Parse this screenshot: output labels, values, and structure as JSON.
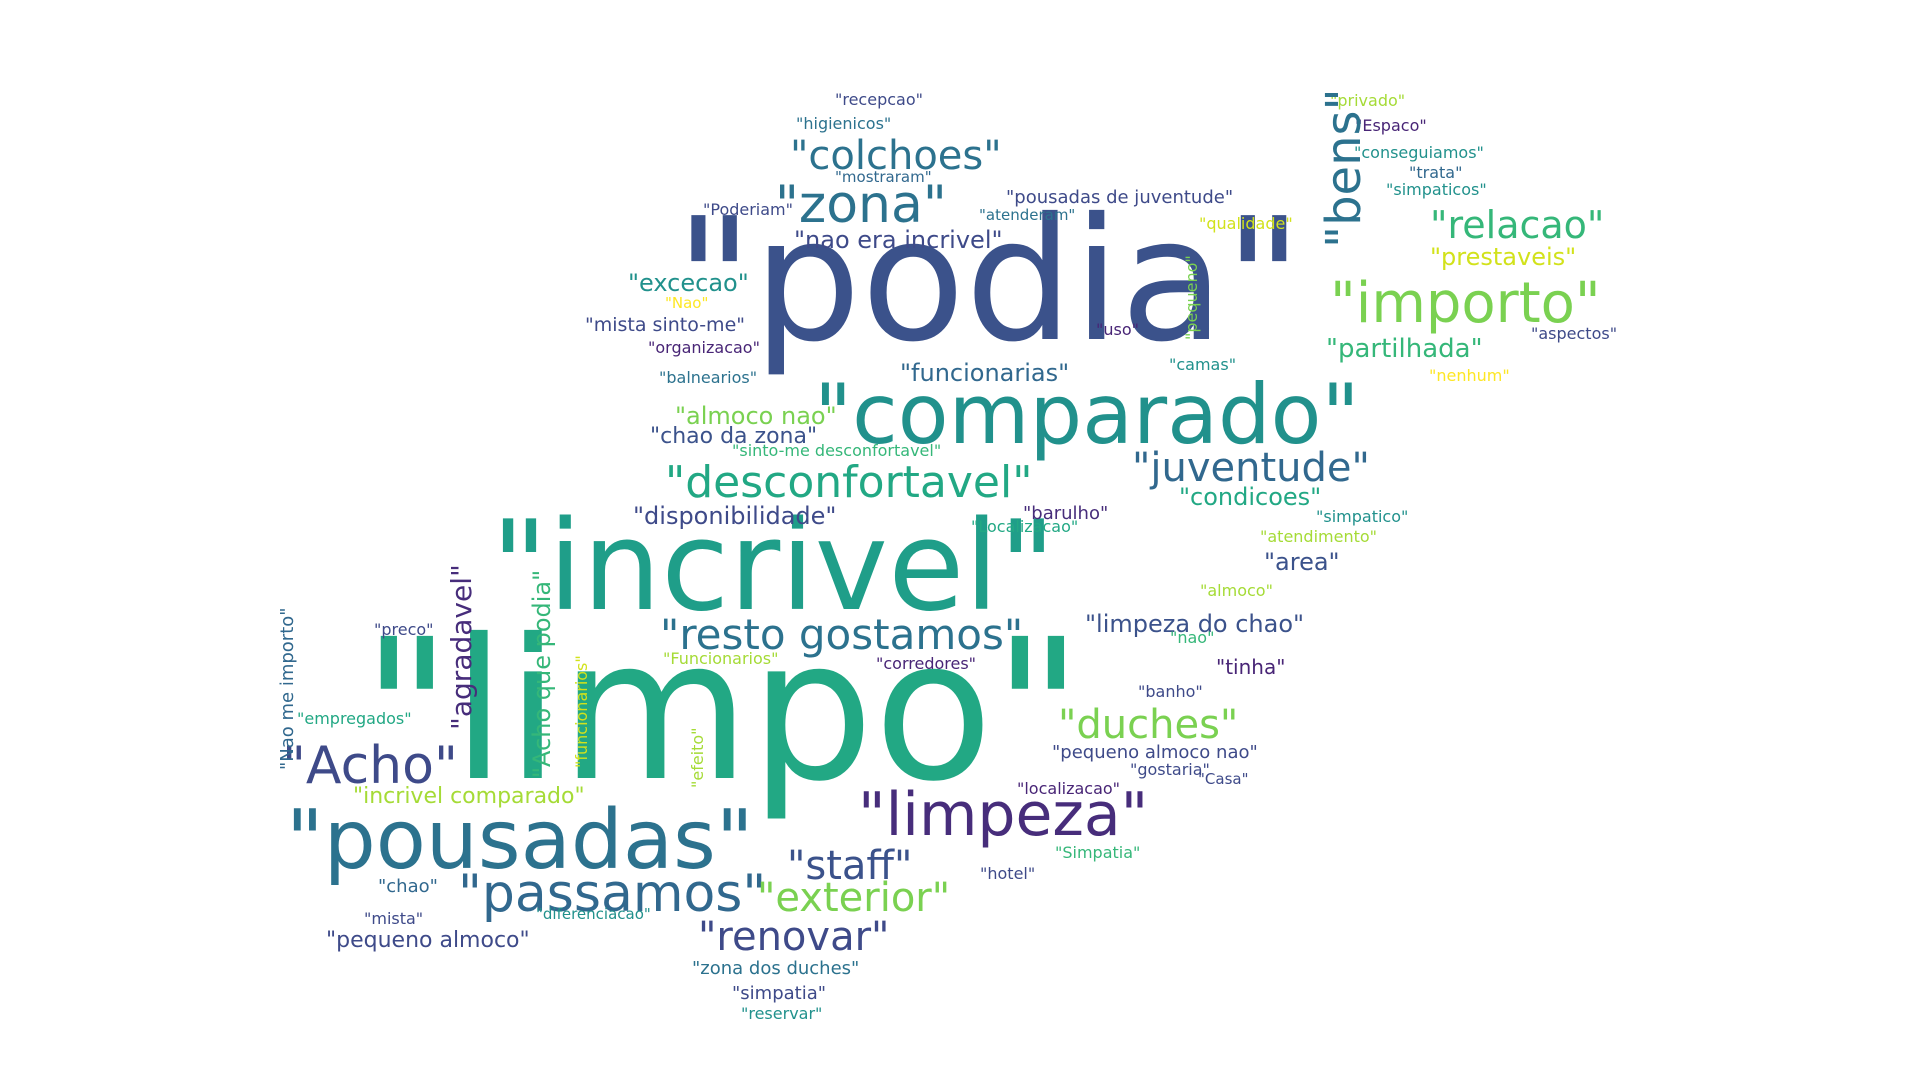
{
  "palette": {
    "navy": "#3b528b",
    "deep": "#3e4a89",
    "purple": "#472d7b",
    "indigo": "#443983",
    "dark": "#482576",
    "teal": "#2c728e",
    "slate": "#31688e",
    "cyan": "#21918c",
    "sea": "#1f9e89",
    "green": "#22a884",
    "mint": "#35b779",
    "lime": "#7ad151",
    "yellowgreen": "#a5db36",
    "gold": "#d2e21b",
    "yellow": "#fde725"
  },
  "words": [
    "\"podia\"",
    "\"limpo\"",
    "\"incrivel\"",
    "\"comparado\"",
    "\"pousadas\"",
    "\"importo\"",
    "\"limpeza\"",
    "\"zona\"",
    "\"desconfortavel\"",
    "\"passamos\"",
    "\"colchoes\"",
    "\"juventude\"",
    "\"resto gostamos\"",
    "\"Acho\"",
    "\"relacao\"",
    "\"duches\"",
    "\"renovar\"",
    "\"staff\"",
    "\"exterior\"",
    "\"bens\"",
    "\"agradavel\"",
    "\"excecao\"",
    "\"partilhada\"",
    "\"disponibilidade\"",
    "\"limpeza do chao\"",
    "\"funcionarias\"",
    "\"nao era incrivel\"",
    "\"prestaveis\"",
    "\"condicoes\"",
    "\"Acho que podia\"",
    "\"almoco nao\"",
    "\"chao da zona\"",
    "\"area\"",
    "\"pequeno almoco\"",
    "\"mista sinto-me\"",
    "\"incrivel comparado\"",
    "\"Nao me importo\"",
    "\"tinha\"",
    "\"barulho\"",
    "\"pousadas de juventude\"",
    "\"recepcao\"",
    "\"higienicos\"",
    "\"mostraram\"",
    "\"Poderiam\"",
    "\"atenderam\"",
    "\"qualidade\"",
    "\"pequeno\"",
    "\"privado\"",
    "\"Espaco\"",
    "\"conseguiamos\"",
    "\"trata\"",
    "\"simpaticos\"",
    "\"aspectos\"",
    "\"nenhum\"",
    "\"uso\"",
    "\"camas\"",
    "\"Nao\"",
    "\"organizacao\"",
    "\"balnearios\"",
    "\"sinto-me desconfortavel\"",
    "\"simpatico\"",
    "\"Localizacao\"",
    "\"atendimento\"",
    "\"almoco\"",
    "\"nao\"",
    "\"preco\"",
    "\"Funcionarios\"",
    "\"funcionarios\"",
    "\"corredores\"",
    "\"banho\"",
    "\"empregados\"",
    "\"efeito\"",
    "\"pequeno almoco nao\"",
    "\"gostaria\"",
    "\"Casa\"",
    "\"localizacao\"",
    "\"Simpatia\"",
    "\"hotel\"",
    "\"chao\"",
    "\"mista\"",
    "\"diferenciacao\"",
    "\"zona dos duches\"",
    "\"simpatia\"",
    "\"reservar\""
  ]
}
